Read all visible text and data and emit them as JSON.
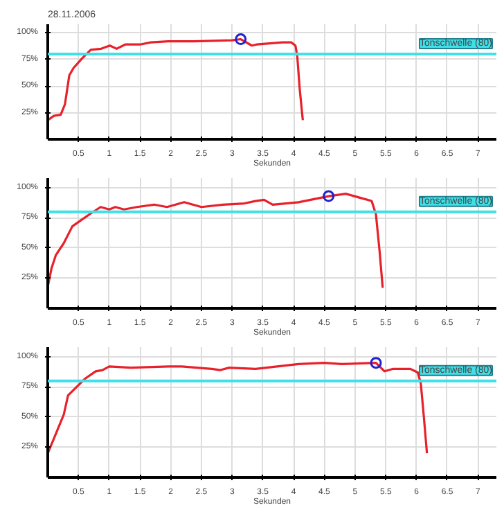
{
  "chart_data": [
    {
      "type": "line",
      "title": "28.11.2006",
      "xlabel": "Sekunden",
      "x": [
        0,
        0.1,
        0.21,
        0.28,
        0.35,
        0.42,
        0.56,
        0.7,
        0.87,
        1.01,
        1.12,
        1.26,
        1.5,
        1.68,
        1.96,
        2.38,
        3.0,
        3.14,
        3.32,
        3.4,
        3.82,
        3.96,
        4.03,
        4.06,
        4.1,
        4.15
      ],
      "series": [
        {
          "color": "#e8202a",
          "values": [
            18,
            22,
            23,
            33,
            60,
            67,
            76,
            84,
            85,
            88,
            85,
            89,
            89,
            91,
            92,
            92,
            93,
            94,
            88,
            89,
            91,
            91,
            88,
            78,
            47,
            18
          ]
        },
        {
          "type": "scatter",
          "marker": "circle",
          "color": "#2020d0",
          "x": [
            3.14
          ],
          "values": [
            94
          ]
        }
      ],
      "xlim": [
        0,
        7.3
      ],
      "ylim": [
        0,
        108
      ],
      "xticks": [
        0.5,
        1,
        1.5,
        2,
        2.5,
        3,
        3.5,
        4,
        4.5,
        5,
        5.5,
        6,
        6.5,
        7
      ],
      "yticks": [
        {
          "value": 25,
          "label": "25%"
        },
        {
          "value": 50,
          "label": "50%"
        },
        {
          "value": 75,
          "label": "75%"
        },
        {
          "value": 100,
          "label": "100%"
        }
      ],
      "grid": true,
      "ref_lines": [
        {
          "axis": "y",
          "value": 80,
          "label": "Tonschwelle (80)",
          "color": "#40e0e8"
        }
      ]
    },
    {
      "type": "line",
      "xlabel": "Sekunden",
      "x": [
        0,
        0.06,
        0.13,
        0.26,
        0.4,
        0.54,
        0.68,
        0.86,
        1.0,
        1.1,
        1.24,
        1.45,
        1.73,
        1.94,
        2.22,
        2.5,
        2.85,
        3.2,
        3.38,
        3.52,
        3.66,
        4.08,
        4.57,
        4.85,
        5.06,
        5.27,
        5.34,
        5.4,
        5.45
      ],
      "series": [
        {
          "color": "#e8202a",
          "values": [
            18,
            33,
            44,
            54,
            68,
            73,
            78,
            84,
            82,
            84,
            82,
            84,
            86,
            84,
            88,
            84,
            86,
            87,
            89,
            90,
            86,
            88,
            93,
            95,
            92,
            89,
            78,
            47,
            17
          ]
        },
        {
          "type": "scatter",
          "marker": "circle",
          "color": "#2020d0",
          "x": [
            4.57
          ],
          "values": [
            93
          ]
        }
      ],
      "xlim": [
        0,
        7.3
      ],
      "ylim": [
        0,
        108
      ],
      "xticks": [
        0.5,
        1,
        1.5,
        2,
        2.5,
        3,
        3.5,
        4,
        4.5,
        5,
        5.5,
        6,
        6.5,
        7
      ],
      "yticks": [
        {
          "value": 25,
          "label": "25%"
        },
        {
          "value": 50,
          "label": "50%"
        },
        {
          "value": 75,
          "label": "75%"
        },
        {
          "value": 100,
          "label": "100%"
        }
      ],
      "grid": true,
      "ref_lines": [
        {
          "axis": "y",
          "value": 80,
          "label": "Tonschwelle (80)",
          "color": "#40e0e8"
        }
      ]
    },
    {
      "type": "line",
      "xlabel": "Sekunden",
      "x": [
        0,
        0.13,
        0.26,
        0.33,
        0.47,
        0.61,
        0.78,
        0.89,
        1.0,
        1.35,
        1.97,
        2.18,
        2.67,
        2.81,
        2.95,
        3.38,
        4.08,
        4.5,
        4.78,
        5.34,
        5.48,
        5.62,
        5.9,
        6.02,
        6.07,
        6.12,
        6.17
      ],
      "series": [
        {
          "color": "#e8202a",
          "values": [
            20,
            36,
            52,
            68,
            75,
            82,
            88,
            89,
            92,
            91,
            92,
            92,
            90,
            89,
            91,
            90,
            94,
            95,
            94,
            95,
            88,
            90,
            90,
            87,
            78,
            50,
            20
          ]
        },
        {
          "type": "scatter",
          "marker": "circle",
          "color": "#2020d0",
          "x": [
            5.34
          ],
          "values": [
            95
          ]
        }
      ],
      "xlim": [
        0,
        7.3
      ],
      "ylim": [
        0,
        108
      ],
      "xticks": [
        0.5,
        1,
        1.5,
        2,
        2.5,
        3,
        3.5,
        4,
        4.5,
        5,
        5.5,
        6,
        6.5,
        7
      ],
      "yticks": [
        {
          "value": 25,
          "label": "25%"
        },
        {
          "value": 50,
          "label": "50%"
        },
        {
          "value": 75,
          "label": "75%"
        },
        {
          "value": 100,
          "label": "100%"
        }
      ],
      "grid": true,
      "ref_lines": [
        {
          "axis": "y",
          "value": 80,
          "label": "Tonschwelle (80)",
          "color": "#40e0e8"
        }
      ]
    }
  ]
}
